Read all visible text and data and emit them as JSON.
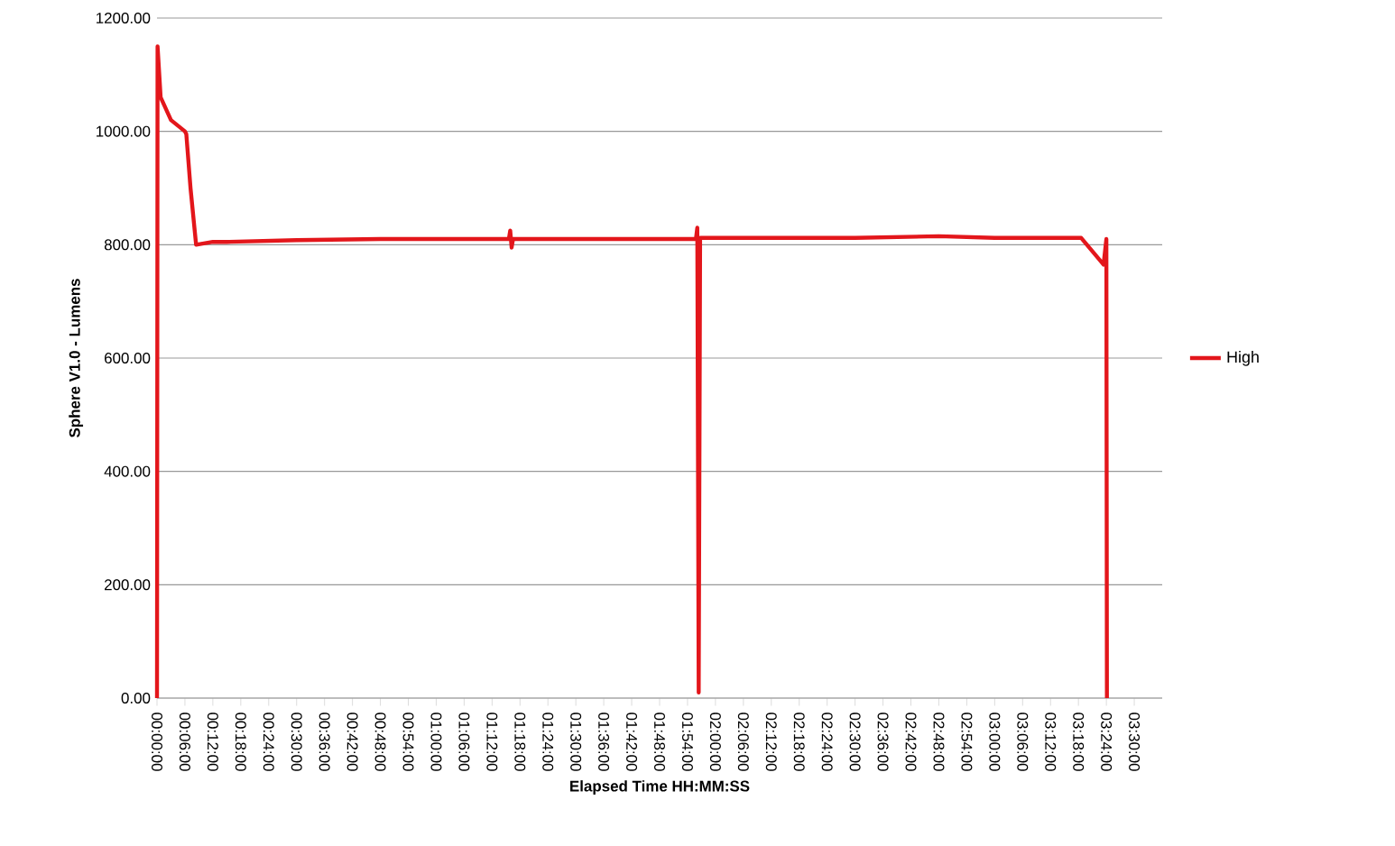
{
  "chart_data": {
    "type": "line",
    "xlabel": "Elapsed Time HH:MM:SS",
    "ylabel": "Sphere V1.0 - Lumens",
    "xlim": [
      0,
      3.6
    ],
    "ylim": [
      0,
      1200
    ],
    "yticks": [
      {
        "value": 0,
        "label": "0.00"
      },
      {
        "value": 200,
        "label": "200.00"
      },
      {
        "value": 400,
        "label": "400.00"
      },
      {
        "value": 600,
        "label": "600.00"
      },
      {
        "value": 800,
        "label": "800.00"
      },
      {
        "value": 1000,
        "label": "1000.00"
      },
      {
        "value": 1200,
        "label": "1200.00"
      }
    ],
    "xticks": [
      {
        "value": 0,
        "label": "00:00:00"
      },
      {
        "value": 0.1,
        "label": "00:06:00"
      },
      {
        "value": 0.2,
        "label": "00:12:00"
      },
      {
        "value": 0.3,
        "label": "00:18:00"
      },
      {
        "value": 0.4,
        "label": "00:24:00"
      },
      {
        "value": 0.5,
        "label": "00:30:00"
      },
      {
        "value": 0.6,
        "label": "00:36:00"
      },
      {
        "value": 0.7,
        "label": "00:42:00"
      },
      {
        "value": 0.8,
        "label": "00:48:00"
      },
      {
        "value": 0.9,
        "label": "00:54:00"
      },
      {
        "value": 1.0,
        "label": "01:00:00"
      },
      {
        "value": 1.1,
        "label": "01:06:00"
      },
      {
        "value": 1.2,
        "label": "01:12:00"
      },
      {
        "value": 1.3,
        "label": "01:18:00"
      },
      {
        "value": 1.4,
        "label": "01:24:00"
      },
      {
        "value": 1.5,
        "label": "01:30:00"
      },
      {
        "value": 1.6,
        "label": "01:36:00"
      },
      {
        "value": 1.7,
        "label": "01:42:00"
      },
      {
        "value": 1.8,
        "label": "01:48:00"
      },
      {
        "value": 1.9,
        "label": "01:54:00"
      },
      {
        "value": 2.0,
        "label": "02:00:00"
      },
      {
        "value": 2.1,
        "label": "02:06:00"
      },
      {
        "value": 2.2,
        "label": "02:12:00"
      },
      {
        "value": 2.3,
        "label": "02:18:00"
      },
      {
        "value": 2.4,
        "label": "02:24:00"
      },
      {
        "value": 2.5,
        "label": "02:30:00"
      },
      {
        "value": 2.6,
        "label": "02:36:00"
      },
      {
        "value": 2.7,
        "label": "02:42:00"
      },
      {
        "value": 2.8,
        "label": "02:48:00"
      },
      {
        "value": 2.9,
        "label": "02:54:00"
      },
      {
        "value": 3.0,
        "label": "03:00:00"
      },
      {
        "value": 3.1,
        "label": "03:06:00"
      },
      {
        "value": 3.2,
        "label": "03:12:00"
      },
      {
        "value": 3.3,
        "label": "03:18:00"
      },
      {
        "value": 3.4,
        "label": "03:24:00"
      },
      {
        "value": 3.5,
        "label": "03:30:00"
      }
    ],
    "grid": "y",
    "legend": "right",
    "marker": "none",
    "line_style": "solid",
    "series": [
      {
        "name": "High",
        "color": "#e3161b",
        "x": [
          0,
          0.002,
          0.013,
          0.05,
          0.1,
          0.105,
          0.12,
          0.14,
          0.2,
          0.25,
          0.5,
          0.8,
          1.0,
          1.26,
          1.265,
          1.27,
          1.275,
          1.5,
          1.93,
          1.935,
          1.94,
          1.945,
          2.2,
          2.5,
          2.8,
          3.0,
          3.31,
          3.39,
          3.4,
          3.402
        ],
        "values": [
          0,
          1150,
          1060,
          1020,
          1000,
          995,
          900,
          800,
          805,
          805,
          808,
          810,
          810,
          810,
          825,
          795,
          810,
          810,
          810,
          830,
          10,
          812,
          812,
          812,
          815,
          812,
          812,
          765,
          810,
          0
        ]
      }
    ]
  }
}
